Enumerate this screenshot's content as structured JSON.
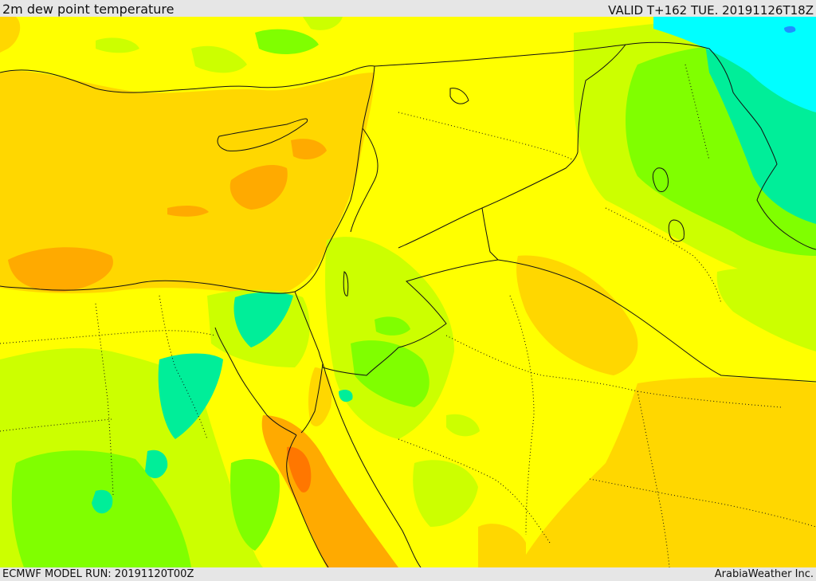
{
  "header": {
    "title": "2m dew point temperature",
    "valid": "VALID T+162 TUE. 20191126T18Z"
  },
  "footer": {
    "model_run": "ECMWF MODEL RUN: 20191120T00Z",
    "credit": "ArabiaWeather Inc."
  },
  "palette": {
    "cyan": "#00ffff",
    "teal": "#00ee99",
    "green": "#80ff00",
    "light_green": "#ccff00",
    "yellow": "#ffff00",
    "gold": "#ffd700",
    "orange": "#ffaa00",
    "dark_orange": "#ff7700"
  }
}
